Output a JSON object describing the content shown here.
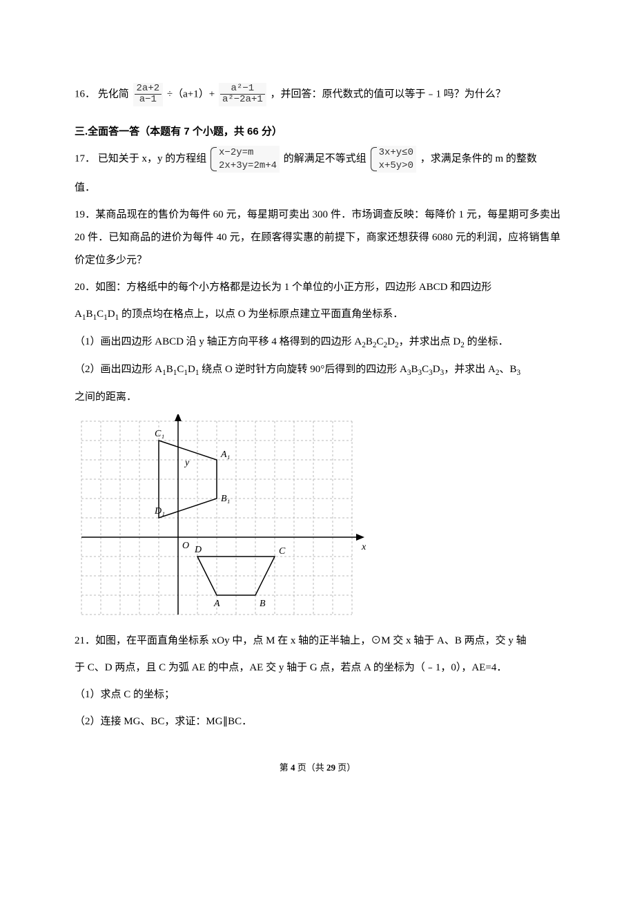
{
  "q16": {
    "num": "16．",
    "pre": "先化简",
    "frac1_num": "2a+2",
    "frac1_den": "a−1",
    "mid1": "÷（a+1）+",
    "frac2_num": "a²−1",
    "frac2_den": "a²−2a+1",
    "post": "，并回答：原代数式的值可以等于﹣1 吗？为什么？"
  },
  "section3": "三.全面答一答（本题有 7 个小题，共 66 分）",
  "q17": {
    "num": "17．",
    "pre": "已知关于 x，y 的方程组",
    "sysA_r1": "x−2y=m",
    "sysA_r2": "2x+3y=2m+4",
    "mid": "的解满足不等式组",
    "sysB_r1": "3x+y≤0",
    "sysB_r2": "x+5y>0",
    "post": "，求满足条件的 m 的整数",
    "tail": "值．"
  },
  "q19": {
    "num": "19．",
    "text": "某商品现在的售价为每件 60 元，每星期可卖出 300 件．市场调查反映：每降价 1 元，每星期可多卖出 20 件．已知商品的进价为每件 40 元，在顾客得实惠的前提下，商家还想获得 6080 元的利润，应将销售单价定位多少元？"
  },
  "q20": {
    "num": "20．",
    "intro1": "如图：方格纸中的每个小方格都是边长为 1 个单位的小正方形，四边形 ABCD 和四边形",
    "intro2_pre": "A",
    "intro2_mid": "B",
    "intro2_c": "C",
    "intro2_d": "D",
    "intro2_post": " 的顶点均在格点上，以点 O 为坐标原点建立平面直角坐标系．",
    "p1_pre": "（1）画出四边形 ABCD 沿 y 轴正方向平移 4 格得到的四边形 A",
    "p1_b": "B",
    "p1_c": "C",
    "p1_d": "D",
    "p1_post": "，并求出点 D",
    "p1_tail": " 的坐标．",
    "p2_pre": "（2）画出四边形 A",
    "p2_b": "B",
    "p2_c": "C",
    "p2_d": "D",
    "p2_mid": " 绕点 O 逆时针方向旋转 90°后得到的四边形 A",
    "p2_b3": "B",
    "p2_c3": "C",
    "p2_d3": "D",
    "p2_post": "，并求出 A",
    "p2_sep": "、B",
    "p2_tail": "之间的距离．",
    "sub1": "1",
    "sub2": "2",
    "sub3": "3"
  },
  "q21": {
    "num": "21．",
    "line1": "如图，在平面直角坐标系 xOy 中，点 M 在 x 轴的正半轴上，⊙M 交 x 轴于 A、B 两点，交 y 轴",
    "line2": "于 C、D 两点，且 C 为弧 AE 的中点，AE 交 y 轴于 G 点，若点 A 的坐标为（﹣1，0），AE=4．",
    "p1": "（1）求点 C 的坐标；",
    "p2": "（2）连接 MG、BC，求证：MG∥BC．"
  },
  "footer": {
    "pre": "第 ",
    "cur": "4",
    "mid": " 页（共 ",
    "total": "29",
    "post": " 页）"
  },
  "grid": {
    "cell": 28,
    "cols": 14,
    "rows": 10,
    "originCol": 5,
    "originRow": 6,
    "gridColor": "#b8b8b8",
    "axisColor": "#000000",
    "shapeColor": "#000000",
    "labelFont": "italic 14px 'Times New Roman', serif",
    "labels": {
      "y": "y",
      "x": "x",
      "O": "O",
      "A1": "A₁",
      "B1": "B₁",
      "C1": "C₁",
      "D1": "D₁",
      "A": "A",
      "B": "B",
      "C": "C",
      "D": "D"
    },
    "quad1": {
      "A1": [
        2,
        4
      ],
      "B1": [
        2,
        2
      ],
      "C1": [
        -1,
        5
      ],
      "D1": [
        -1,
        1
      ]
    },
    "quad2": {
      "D": [
        1,
        -1
      ],
      "C": [
        5,
        -1
      ],
      "A": [
        2,
        -3
      ],
      "B": [
        4,
        -3
      ]
    }
  }
}
